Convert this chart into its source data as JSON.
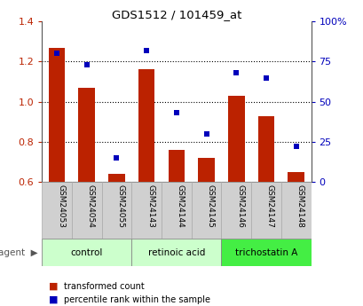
{
  "title": "GDS1512 / 101459_at",
  "samples": [
    "GSM24053",
    "GSM24054",
    "GSM24055",
    "GSM24143",
    "GSM24144",
    "GSM24145",
    "GSM24146",
    "GSM24147",
    "GSM24148"
  ],
  "red_values": [
    1.27,
    1.07,
    0.64,
    1.16,
    0.76,
    0.72,
    1.03,
    0.93,
    0.65
  ],
  "blue_values": [
    80,
    73,
    15,
    82,
    43,
    30,
    68,
    65,
    22
  ],
  "ylim_left": [
    0.6,
    1.4
  ],
  "ylim_right": [
    0,
    100
  ],
  "yticks_left": [
    0.6,
    0.8,
    1.0,
    1.2,
    1.4
  ],
  "yticks_right": [
    0,
    25,
    50,
    75,
    100
  ],
  "yticklabels_right": [
    "0",
    "25",
    "50",
    "75",
    "100%"
  ],
  "bar_color": "#bb2200",
  "dot_color": "#0000bb",
  "agent_groups": [
    {
      "label": "control",
      "indices": [
        0,
        1,
        2
      ],
      "color": "#ccffcc"
    },
    {
      "label": "retinoic acid",
      "indices": [
        3,
        4,
        5
      ],
      "color": "#ccffcc"
    },
    {
      "label": "trichostatin A",
      "indices": [
        6,
        7,
        8
      ],
      "color": "#44ee44"
    }
  ],
  "legend_red": "transformed count",
  "legend_blue": "percentile rank within the sample",
  "bar_bottom": 0.6,
  "grid_dotted_at": [
    0.8,
    1.0,
    1.2
  ]
}
